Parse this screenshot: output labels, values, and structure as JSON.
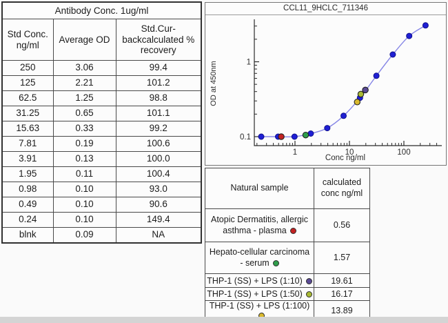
{
  "left_table": {
    "title": "Antibody Conc. 1ug/ml",
    "columns": [
      "Std Conc. ng/ml",
      "Average OD",
      "Std.Cur-backcalculated % recovery"
    ],
    "rows": [
      [
        "250",
        "3.06",
        "99.4"
      ],
      [
        "125",
        "2.21",
        "101.2"
      ],
      [
        "62.5",
        "1.25",
        "98.8"
      ],
      [
        "31.25",
        "0.65",
        "101.1"
      ],
      [
        "15.63",
        "0.33",
        "99.2"
      ],
      [
        "7.81",
        "0.19",
        "100.6"
      ],
      [
        "3.91",
        "0.13",
        "100.0"
      ],
      [
        "1.95",
        "0.11",
        "100.4"
      ],
      [
        "0.98",
        "0.10",
        "93.0"
      ],
      [
        "0.49",
        "0.10",
        "90.6"
      ],
      [
        "0.24",
        "0.10",
        "149.4"
      ],
      [
        "blnk",
        "0.09",
        "NA"
      ]
    ]
  },
  "chart_data": {
    "type": "scatter",
    "title": "CCL11_9HCLC_711346",
    "xlabel": "Conc ng/ml",
    "ylabel": "OD at 450nm",
    "xscale": "log",
    "yscale": "log",
    "xlim": [
      0.18,
      450
    ],
    "ylim": [
      0.075,
      3.7
    ],
    "x_major_ticks": [
      "1",
      "10",
      "100"
    ],
    "y_major_ticks": [
      "0.1",
      "1"
    ],
    "grid": false,
    "legend": "none",
    "series": [
      {
        "name": "standard curve",
        "marker_color": "#1f1fd4",
        "line_color": "#8686e6",
        "x": [
          0.24,
          0.49,
          0.98,
          1.95,
          3.91,
          7.81,
          15.63,
          31.25,
          62.5,
          125,
          250
        ],
        "y": [
          0.1,
          0.1,
          0.1,
          0.11,
          0.13,
          0.19,
          0.33,
          0.65,
          1.25,
          2.21,
          3.06
        ]
      }
    ],
    "sample_points": [
      {
        "label": "Atopic Dermatitis, allergic asthma - plasma",
        "x": 0.56,
        "y": 0.1,
        "color": "#c32222"
      },
      {
        "label": "Hepato-cellular carcinoma - serum",
        "x": 1.57,
        "y": 0.105,
        "color": "#2f9e4b"
      },
      {
        "label": "THP-1 (SS) + LPS (1:100)",
        "x": 13.89,
        "y": 0.29,
        "color": "#d9b92f"
      },
      {
        "label": "THP-1 (SS) + LPS (1:50)",
        "x": 16.17,
        "y": 0.37,
        "color": "#a9ba34"
      },
      {
        "label": "THP-1 (SS) + LPS (1:10)",
        "x": 19.61,
        "y": 0.42,
        "color": "#5a4a96"
      }
    ]
  },
  "sample_table": {
    "columns": [
      "Natural sample",
      "calculated conc ng/ml"
    ],
    "rows": [
      {
        "label": "Atopic Dermatitis, allergic asthma - plasma",
        "dot": "#c32222",
        "value": "0.56"
      },
      {
        "label": "Hepato-cellular carcinoma - serum",
        "dot": "#2f9e4b",
        "value": "1.57"
      },
      {
        "label": "THP-1 (SS) + LPS (1:10)",
        "dot": "#5a4a96",
        "value": "19.61"
      },
      {
        "label": "THP-1 (SS) + LPS (1:50)",
        "dot": "#a9ba34",
        "value": "16.17"
      },
      {
        "label": "THP-1 (SS) + LPS (1:100)",
        "dot": "#d9b92f",
        "value": "13.89"
      }
    ]
  }
}
